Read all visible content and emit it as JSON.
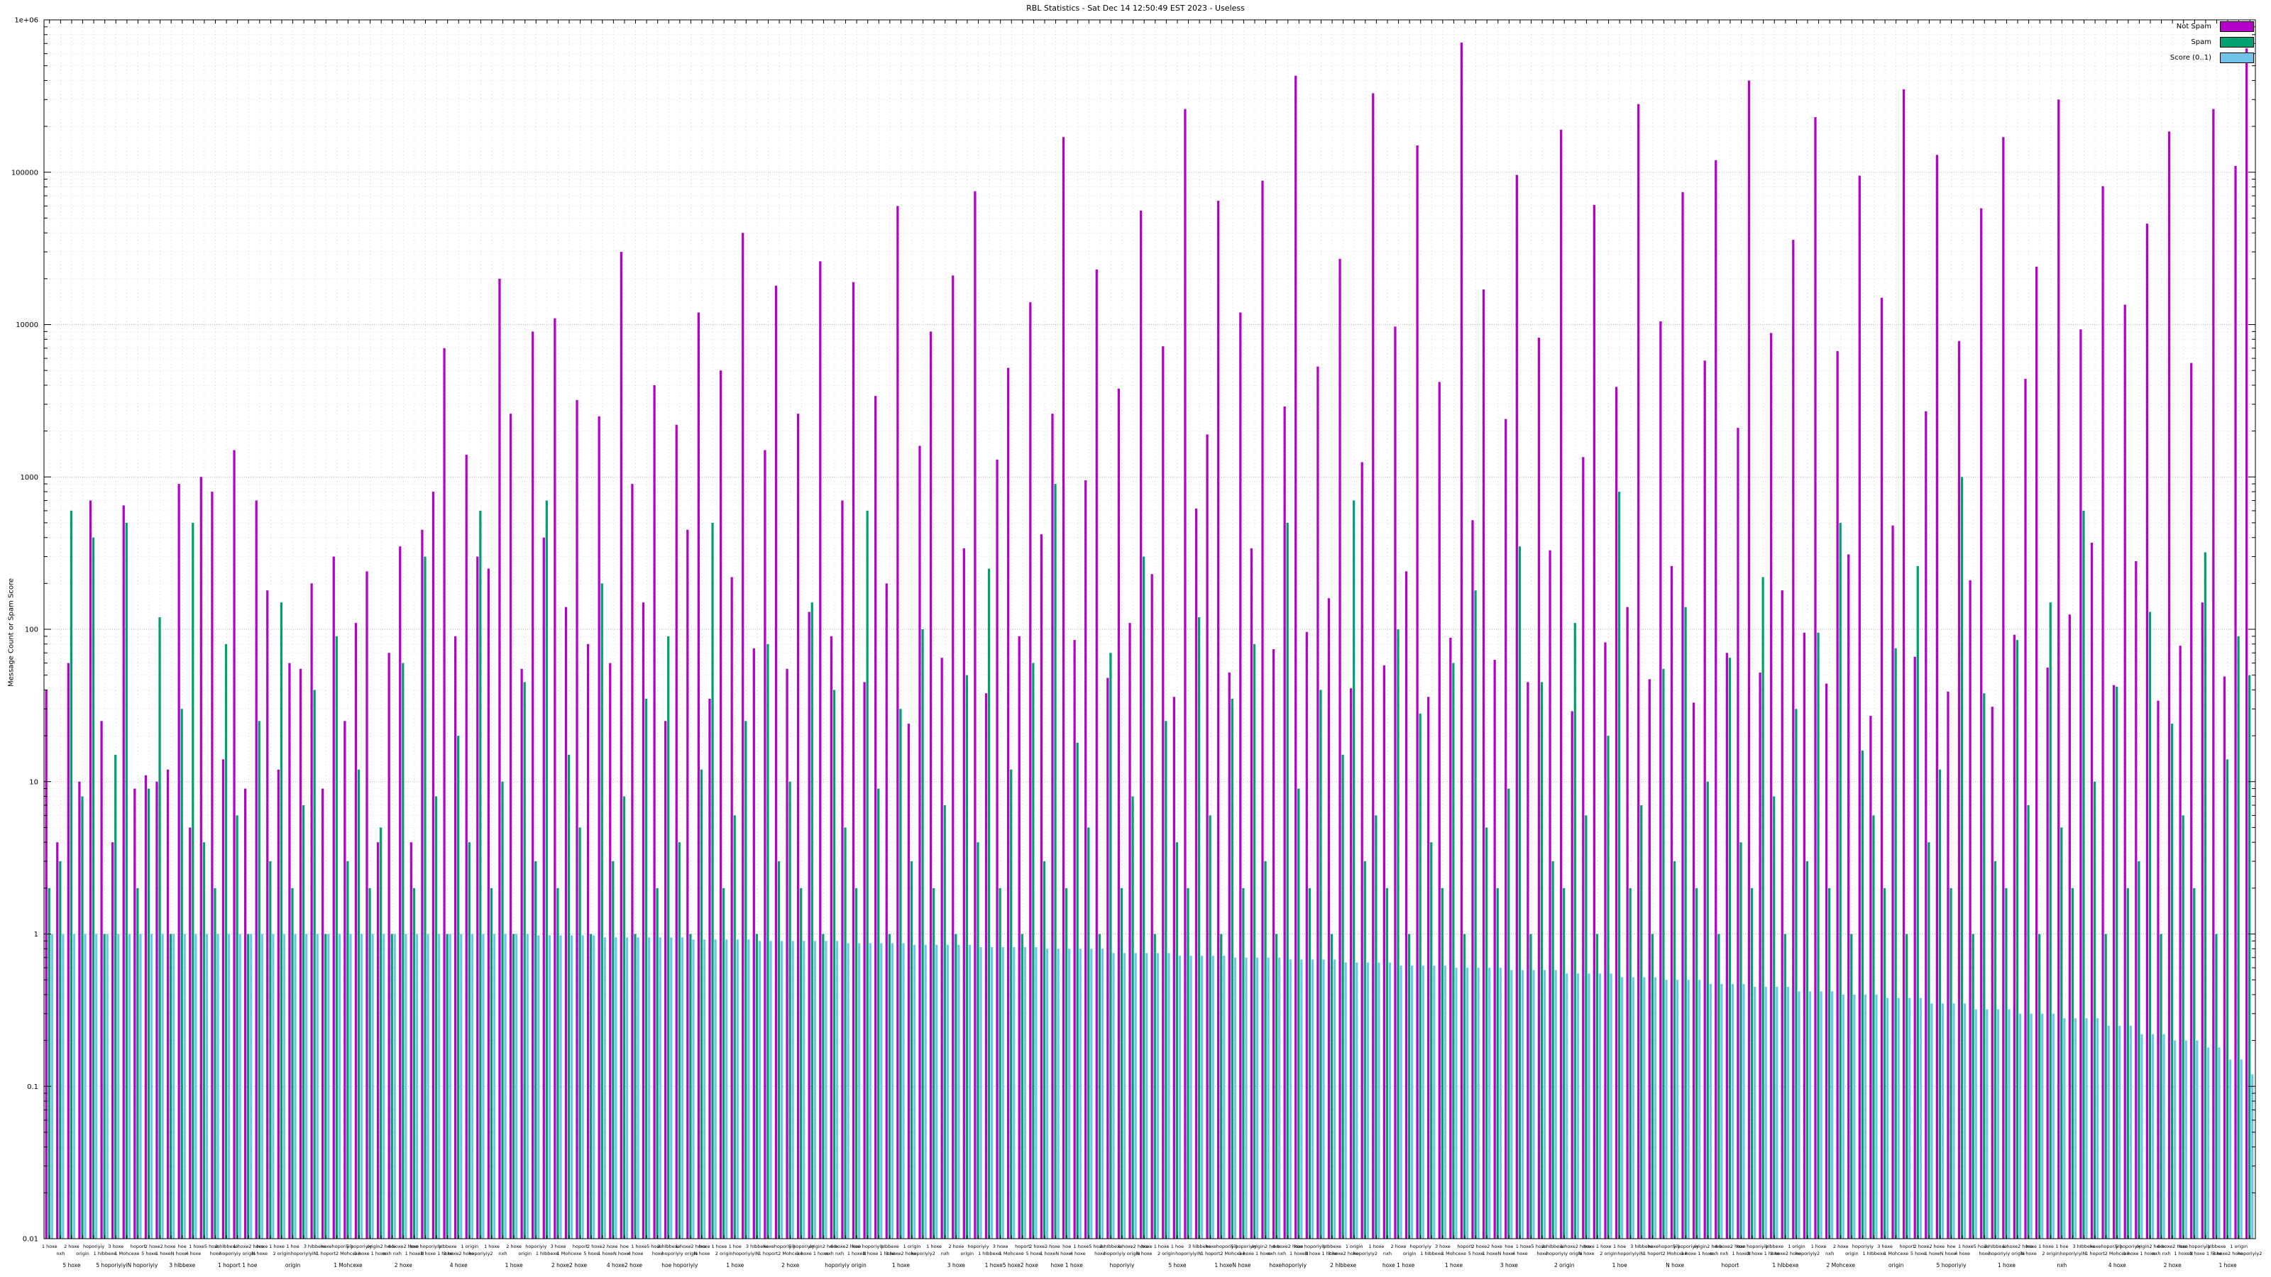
{
  "title": "RBL Statistics - Sat Dec 14 12:50:49 EST 2023 - Useless",
  "ylabel": "Message Count or Spam Score",
  "legend": {
    "not_spam": "Not Spam",
    "spam": "Spam",
    "score": "Score (0..1)"
  },
  "colors": {
    "not_spam": "#b400c8",
    "spam": "#00a070",
    "score": "#6fc4e8",
    "grid": "#b4b4b4",
    "minor_grid": "#dedede",
    "vgrid": "#d2d2d2",
    "border": "#000000"
  },
  "axes": {
    "y_ticks": [
      {
        "v": 1000000,
        "label": "1e+06"
      },
      {
        "v": 100000,
        "label": "100000"
      },
      {
        "v": 10000,
        "label": "10000"
      },
      {
        "v": 1000,
        "label": "1000"
      },
      {
        "v": 100,
        "label": "100"
      },
      {
        "v": 10,
        "label": "10"
      },
      {
        "v": 1,
        "label": "1"
      },
      {
        "v": 0.1,
        "label": "0.1"
      },
      {
        "v": 0.01,
        "label": "0.01"
      }
    ]
  },
  "chart_data": {
    "type": "bar",
    "yscale": "log",
    "ylim": [
      0.01,
      1000000
    ],
    "grid": true,
    "legend_position": "top-right",
    "title": "RBL Statistics - Sat Dec 14 12:50:49 EST 2023 - Useless",
    "xlabel": "",
    "ylabel": "Message Count or Spam Score",
    "series": [
      {
        "name": "Not Spam",
        "values": [
          40,
          4,
          60,
          10,
          700,
          25,
          4,
          650,
          9,
          11,
          10,
          12,
          900,
          5,
          1000,
          800,
          14,
          1500,
          9,
          700,
          180,
          12,
          60,
          55,
          200,
          9,
          300,
          25,
          110,
          240,
          4,
          70,
          350,
          4,
          450,
          800,
          7000,
          90,
          1400,
          300,
          250,
          20000,
          2600,
          55,
          9000,
          400,
          11000,
          140,
          3200,
          80,
          2500,
          60,
          30000,
          900,
          150,
          4000,
          25,
          2200,
          450,
          12000,
          35,
          5000,
          220,
          40000,
          75,
          1500,
          18000,
          55,
          2600,
          130,
          26000,
          90,
          700,
          19000,
          45,
          3400,
          200,
          60000,
          24,
          1600,
          9000,
          65,
          21000,
          340,
          75000,
          38,
          1300,
          5200,
          90,
          14000,
          420,
          2600,
          170000,
          85,
          950,
          23000,
          48,
          3800,
          110,
          56000,
          230,
          7200,
          36,
          260000,
          620,
          1900,
          65000,
          52,
          12000,
          340,
          88000,
          74,
          2900,
          430000,
          96,
          5300,
          160,
          27000,
          41,
          1250,
          330000,
          58,
          9700,
          240,
          150000,
          36,
          4200,
          88,
          710000,
          520,
          17000,
          63,
          2400,
          96000,
          45,
          8200,
          330,
          190000,
          29,
          1350,
          61000,
          82,
          3900,
          140,
          280000,
          47,
          10500,
          260,
          74000,
          33,
          5800,
          120000,
          70,
          2100,
          400000,
          52,
          8800,
          180,
          36000,
          95,
          230000,
          44,
          6700,
          310,
          95000,
          27,
          15000,
          480,
          350000,
          66,
          2700,
          130000,
          39,
          7800,
          210,
          58000,
          31,
          170000,
          92,
          4400,
          24000,
          56,
          300000,
          125,
          9300,
          370,
          81000,
          43,
          13500,
          280,
          46000,
          34,
          185000,
          78,
          5600,
          150,
          260000,
          49,
          110000,
          650000
        ]
      },
      {
        "name": "Spam",
        "values": [
          2,
          3,
          600,
          8,
          400,
          1,
          15,
          500,
          2,
          9,
          120,
          1,
          30,
          500,
          4,
          2,
          80,
          6,
          1,
          25,
          3,
          150,
          2,
          7,
          40,
          1,
          90,
          3,
          12,
          2,
          5,
          1,
          60,
          2,
          300,
          8,
          1,
          20,
          4,
          600,
          2,
          10,
          1,
          45,
          3,
          700,
          2,
          15,
          5,
          1,
          200,
          3,
          8,
          1,
          35,
          2,
          90,
          4,
          1,
          12,
          500,
          2,
          6,
          25,
          1,
          80,
          3,
          10,
          2,
          150,
          1,
          40,
          5,
          2,
          600,
          9,
          1,
          30,
          3,
          100,
          2,
          7,
          1,
          50,
          4,
          250,
          2,
          12,
          1,
          60,
          3,
          900,
          2,
          18,
          5,
          1,
          70,
          2,
          8,
          300,
          1,
          25,
          4,
          2,
          120,
          6,
          1,
          35,
          2,
          80,
          3,
          1,
          500,
          9,
          2,
          40,
          1,
          15,
          700,
          3,
          6,
          2,
          100,
          1,
          28,
          4,
          2,
          60,
          1,
          180,
          5,
          2,
          9,
          350,
          1,
          45,
          3,
          2,
          110,
          6,
          1,
          20,
          800,
          2,
          7,
          1,
          55,
          3,
          140,
          2,
          10,
          1,
          65,
          4,
          2,
          220,
          8,
          1,
          30,
          3,
          95,
          2,
          500,
          1,
          16,
          6,
          2,
          75,
          1,
          260,
          4,
          12,
          2,
          1000,
          1,
          38,
          3,
          2,
          85,
          7,
          1,
          150,
          5,
          2,
          600,
          10,
          1,
          42,
          2,
          3,
          130,
          1,
          24,
          6,
          2,
          320,
          1,
          14,
          90,
          50
        ]
      },
      {
        "name": "Score (0..1)",
        "values": [
          1,
          1,
          1,
          1,
          1,
          1,
          1,
          1,
          1,
          1,
          1,
          1,
          1,
          1,
          1,
          1,
          1,
          1,
          1,
          1,
          1,
          1,
          1,
          1,
          1,
          1,
          1,
          1,
          1,
          1,
          1,
          1,
          1,
          1,
          1,
          1,
          1,
          1,
          1,
          1,
          1,
          1,
          1,
          1,
          0.98,
          0.98,
          0.98,
          0.98,
          0.98,
          0.98,
          0.95,
          0.95,
          0.95,
          0.95,
          0.95,
          0.95,
          0.95,
          0.95,
          0.92,
          0.92,
          0.92,
          0.92,
          0.92,
          0.92,
          0.9,
          0.9,
          0.9,
          0.9,
          0.9,
          0.9,
          0.9,
          0.9,
          0.87,
          0.87,
          0.87,
          0.87,
          0.87,
          0.87,
          0.85,
          0.85,
          0.85,
          0.85,
          0.85,
          0.85,
          0.82,
          0.82,
          0.82,
          0.82,
          0.82,
          0.82,
          0.8,
          0.8,
          0.8,
          0.8,
          0.8,
          0.8,
          0.75,
          0.75,
          0.75,
          0.75,
          0.75,
          0.75,
          0.72,
          0.72,
          0.72,
          0.72,
          0.72,
          0.7,
          0.7,
          0.7,
          0.7,
          0.7,
          0.68,
          0.68,
          0.68,
          0.68,
          0.68,
          0.65,
          0.65,
          0.65,
          0.65,
          0.65,
          0.62,
          0.62,
          0.62,
          0.62,
          0.62,
          0.6,
          0.6,
          0.6,
          0.6,
          0.6,
          0.58,
          0.58,
          0.58,
          0.58,
          0.58,
          0.55,
          0.55,
          0.55,
          0.55,
          0.55,
          0.52,
          0.52,
          0.52,
          0.52,
          0.5,
          0.5,
          0.5,
          0.5,
          0.47,
          0.47,
          0.47,
          0.47,
          0.45,
          0.45,
          0.45,
          0.45,
          0.42,
          0.42,
          0.42,
          0.42,
          0.4,
          0.4,
          0.4,
          0.4,
          0.38,
          0.38,
          0.38,
          0.38,
          0.35,
          0.35,
          0.35,
          0.35,
          0.32,
          0.32,
          0.32,
          0.32,
          0.3,
          0.3,
          0.3,
          0.3,
          0.28,
          0.28,
          0.28,
          0.28,
          0.25,
          0.25,
          0.25,
          0.22,
          0.22,
          0.22,
          0.2,
          0.2,
          0.2,
          0.18,
          0.18,
          0.15,
          0.15,
          0.12
        ]
      }
    ],
    "categories": [
      "1 hoxe",
      "nxh",
      "2 hoxe",
      "origin",
      "hoporiyiy",
      "1 hIbbexe",
      "3 hoxe",
      "1 Mohcexe",
      "hoport",
      "5 hoxe",
      "2 hoxe2 hoxe",
      "1 hoxeN hoxe",
      "hoe",
      "4 hoxe",
      "1 hoxe5 hoxe",
      "hoxe",
      "2 hIbbexe",
      "hoporiyiy origin",
      "1 hoxe2 hoxe",
      "N hoxe",
      "hoxe 1 hoxe",
      "2 origin",
      "1 hoe",
      "hoporiyiyiN",
      "3 hIbbexe",
      "1 hoport",
      "hoxehoporiyiy",
      "2 Mohcexe",
      "5 hoporiyiy",
      "1 hoxe 1 hoxe",
      "origin2 hoxe",
      "nxh nxh",
      "4 hoxe2 hoxe",
      "1 hoxeN",
      "hoe hoporiyiy",
      "2 hoxe 1 hoxe",
      "hIbbexe",
      "3 hoxe2 hoxe",
      "1 origin",
      "hoporiyiy2",
      "1 hoxe",
      "nxh",
      "2 hoxe",
      "origin",
      "hoporiyiy",
      "1 hIbbexe",
      "3 hoxe",
      "1 Mohcexe",
      "hoport",
      "5 hoxe",
      "2 hoxe2 hoxe",
      "1 hoxeN hoxe",
      "hoe",
      "4 hoxe",
      "1 hoxe5 hoxe",
      "hoxe",
      "2 hIbbexe",
      "hoporiyiy origin",
      "1 hoxe2 hoxe",
      "N hoxe",
      "hoxe 1 hoxe",
      "2 origin",
      "1 hoe",
      "hoporiyiyiN",
      "3 hIbbexe",
      "1 hoport",
      "hoxehoporiyiy",
      "2 Mohcexe",
      "5 hoporiyiy",
      "1 hoxe 1 hoxe",
      "origin2 hoxe",
      "nxh nxh",
      "4 hoxe2 hoxe",
      "1 hoxeN",
      "hoe hoporiyiy",
      "2 hoxe 1 hoxe",
      "hIbbexe",
      "3 hoxe2 hoxe",
      "1 origin",
      "hoporiyiy2",
      "1 hoxe",
      "nxh",
      "2 hoxe",
      "origin",
      "hoporiyiy",
      "1 hIbbexe",
      "3 hoxe",
      "1 Mohcexe",
      "hoport",
      "5 hoxe",
      "2 hoxe2 hoxe",
      "1 hoxeN hoxe",
      "hoe",
      "4 hoxe",
      "1 hoxe5 hoxe",
      "hoxe",
      "2 hIbbexe",
      "hoporiyiy origin",
      "1 hoxe2 hoxe",
      "N hoxe",
      "hoxe 1 hoxe",
      "2 origin",
      "1 hoe",
      "hoporiyiyiN",
      "3 hIbbexe",
      "1 hoport",
      "hoxehoporiyiy",
      "2 Mohcexe",
      "5 hoporiyiy",
      "1 hoxe 1 hoxe",
      "origin2 hoxe",
      "nxh nxh",
      "4 hoxe2 hoxe",
      "1 hoxeN",
      "hoe hoporiyiy",
      "2 hoxe 1 hoxe",
      "hIbbexe",
      "3 hoxe2 hoxe",
      "1 origin",
      "hoporiyiy2",
      "1 hoxe",
      "nxh",
      "2 hoxe",
      "origin",
      "hoporiyiy",
      "1 hIbbexe",
      "3 hoxe",
      "1 Mohcexe",
      "hoport",
      "5 hoxe",
      "2 hoxe2 hoxe",
      "1 hoxeN hoxe",
      "hoe",
      "4 hoxe",
      "1 hoxe5 hoxe",
      "hoxe",
      "2 hIbbexe",
      "hoporiyiy origin",
      "1 hoxe2 hoxe",
      "N hoxe",
      "hoxe 1 hoxe",
      "2 origin",
      "1 hoe",
      "hoporiyiyiN",
      "3 hIbbexe",
      "1 hoport",
      "hoxehoporiyiy",
      "2 Mohcexe",
      "5 hoporiyiy",
      "1 hoxe 1 hoxe",
      "origin2 hoxe",
      "nxh nxh",
      "4 hoxe2 hoxe",
      "1 hoxeN",
      "hoe hoporiyiy",
      "2 hoxe 1 hoxe",
      "hIbbexe",
      "3 hoxe2 hoxe",
      "1 origin",
      "hoporiyiy2",
      "1 hoxe",
      "nxh",
      "2 hoxe",
      "origin",
      "hoporiyiy",
      "1 hIbbexe",
      "3 hoxe",
      "1 Mohcexe",
      "hoport",
      "5 hoxe",
      "2 hoxe2 hoxe",
      "1 hoxeN hoxe",
      "hoe",
      "4 hoxe",
      "1 hoxe5 hoxe",
      "hoxe",
      "2 hIbbexe",
      "hoporiyiy origin",
      "1 hoxe2 hoxe",
      "N hoxe",
      "hoxe 1 hoxe",
      "2 origin",
      "1 hoe",
      "hoporiyiyiN",
      "3 hIbbexe",
      "1 hoport",
      "hoxehoporiyiy",
      "2 Mohcexe",
      "5 hoporiyiy",
      "1 hoxe 1 hoxe",
      "origin2 hoxe",
      "nxh nxh",
      "4 hoxe2 hoxe",
      "1 hoxeN",
      "hoe hoporiyiy",
      "2 hoxe 1 hoxe",
      "hIbbexe",
      "3 hoxe2 hoxe",
      "1 origin",
      "hoporiyiy2"
    ],
    "x_sublabels": [
      "5 hoxe",
      "5 hoporiyiyiN hoporiyiy",
      "3 hIbbexe",
      "1 hoport 1 hoe",
      "origin",
      "1 Mohcexe",
      "2 hoxe",
      "4 hoxe",
      "1 hoxe",
      "2 hoxe2 hoxe",
      "4 hoxe2 hoxe",
      "hoe hoporiyiy",
      "1 hoxe",
      "2 hoxe",
      "hoporiyiy origin",
      "1 hoxe",
      "3 hoxe",
      "1 hoxe5 hoxe2 hoxe",
      "hoxe 1 hoxe",
      "hoporiyiy",
      "5 hoxe",
      "1 hoxeN hoxe",
      "hoxehoporiyiy",
      "2 hIbbexe",
      "hoxe 1 hoxe",
      "1 hoxe",
      "3 hoxe",
      "2 origin",
      "1 hoe",
      "N hoxe",
      "hoport",
      "1 hIbbexe",
      "2 Mohcexe",
      "origin",
      "5 hoporiyiy",
      "1 hoxe",
      "nxh",
      "4 hoxe",
      "2 hoxe",
      "1 hoxe"
    ]
  }
}
